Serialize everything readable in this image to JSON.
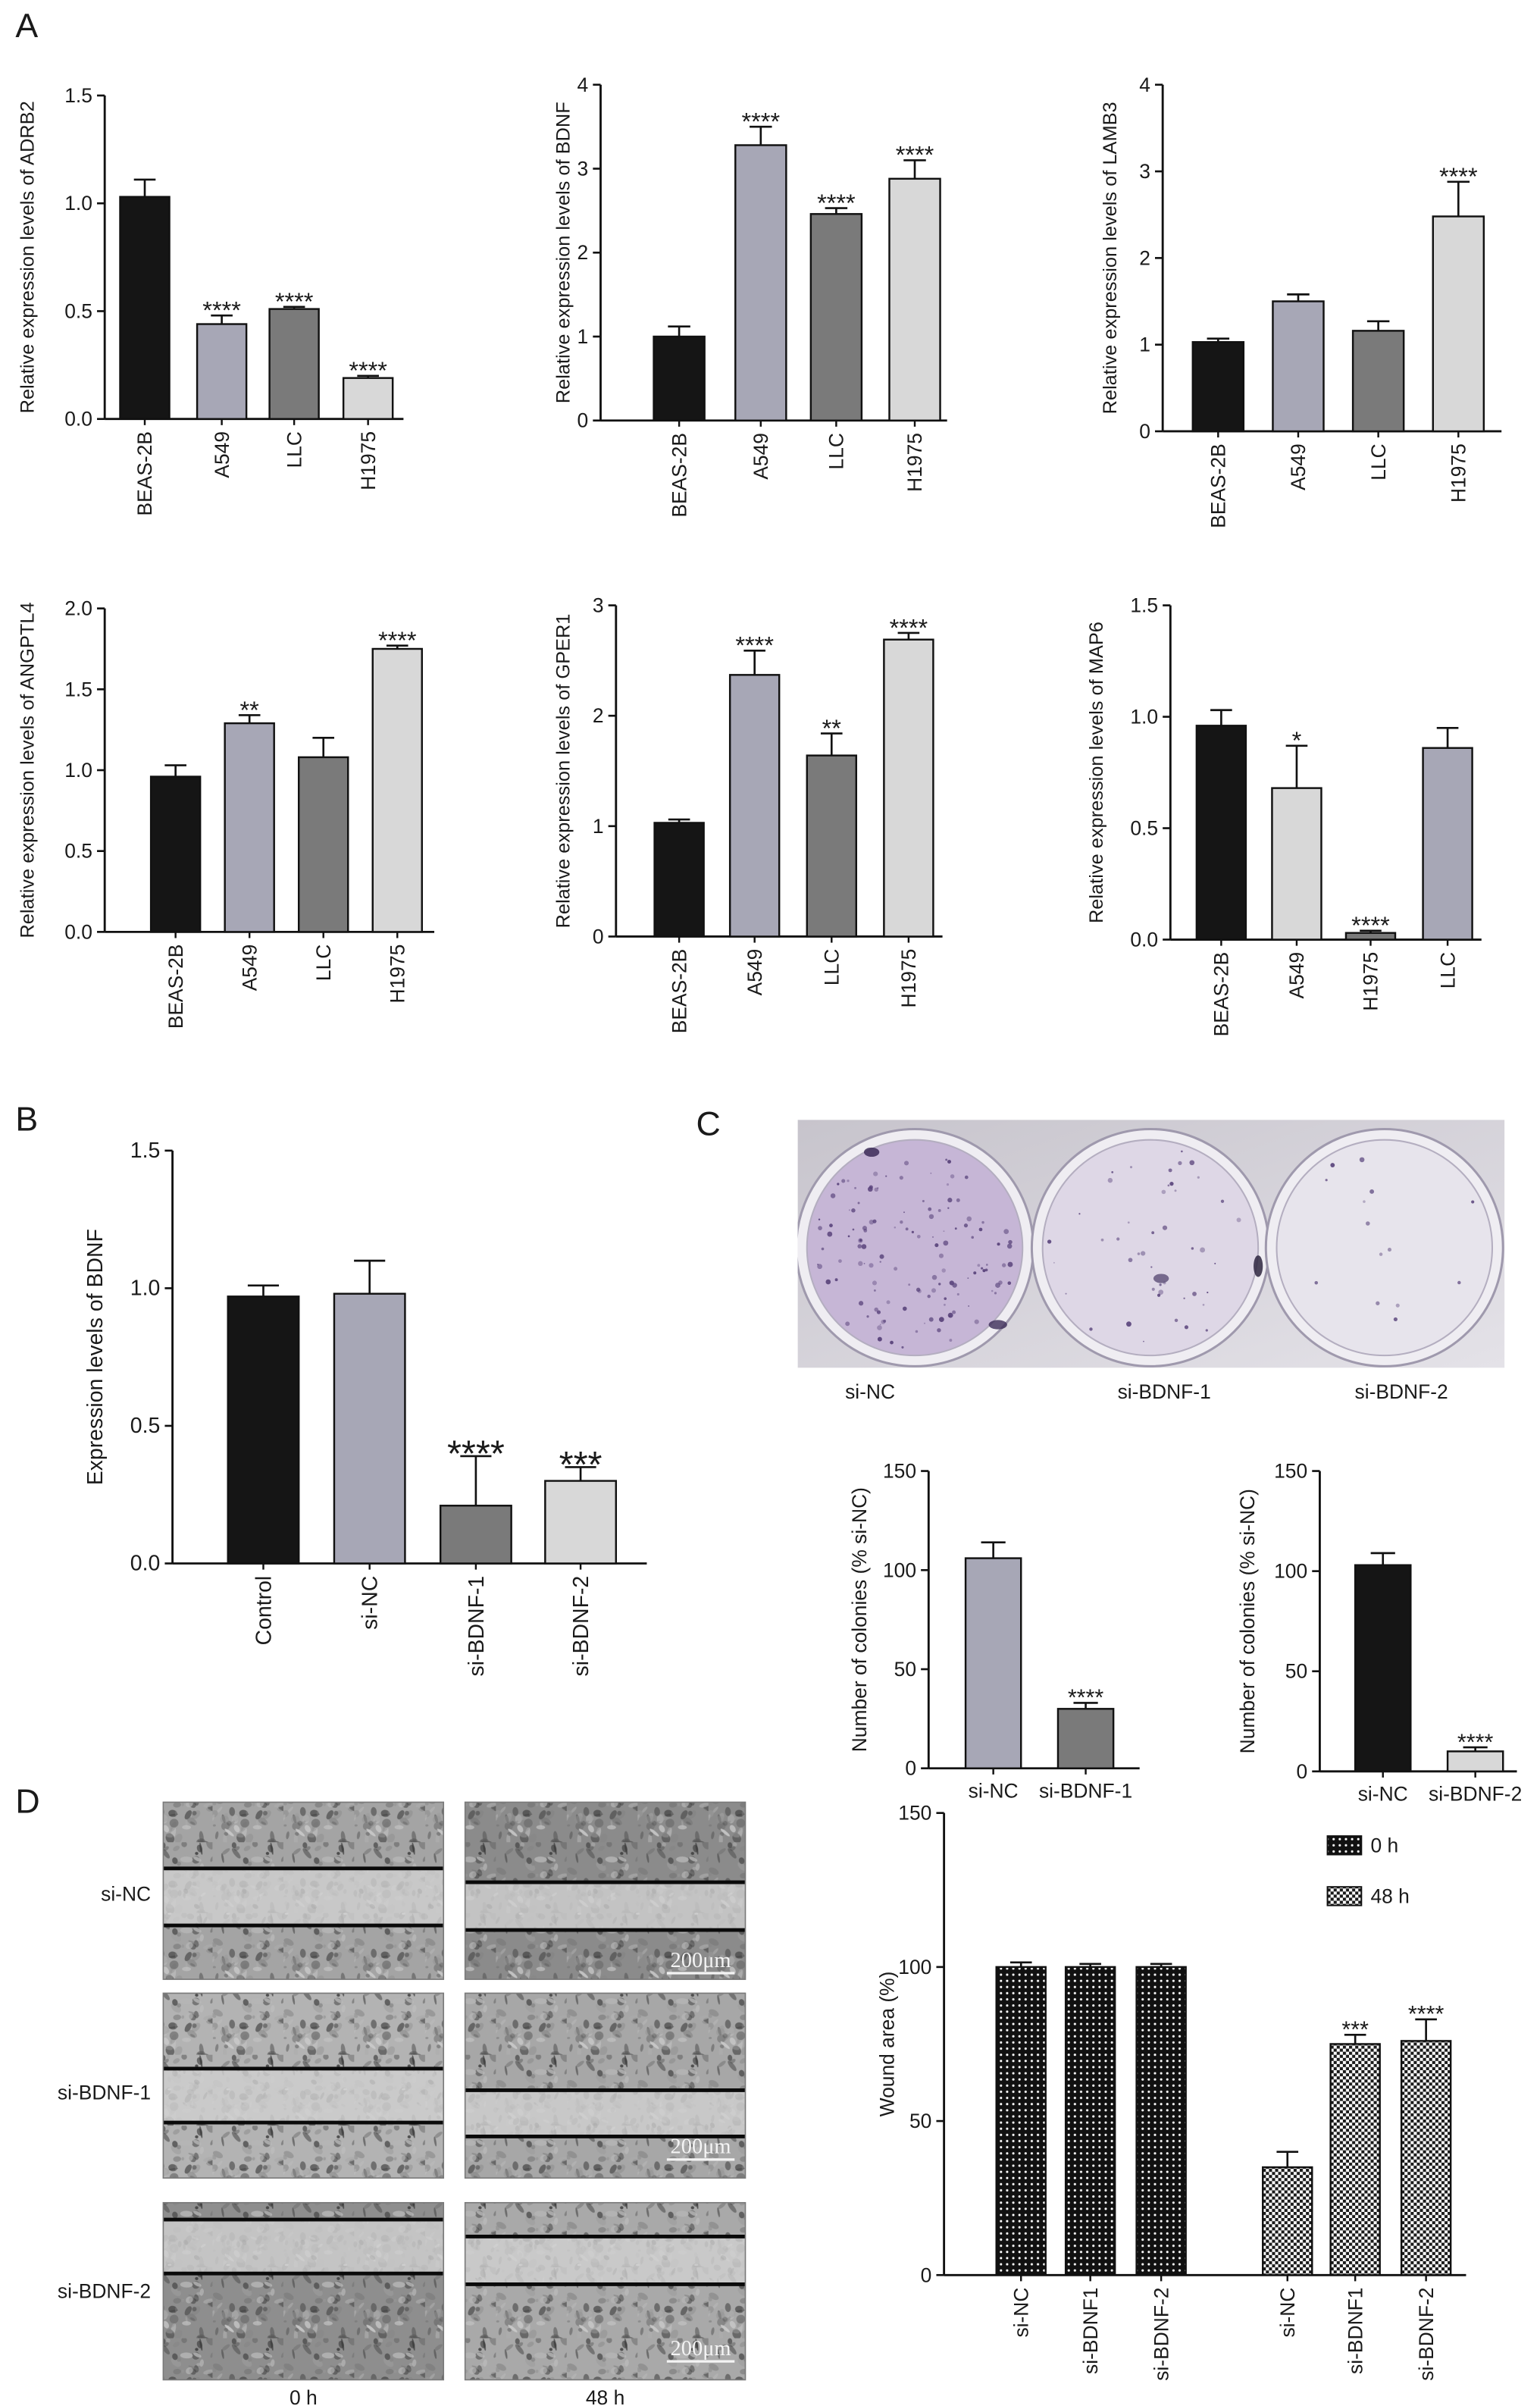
{
  "panel_labels": {
    "a": "A",
    "b": "B",
    "c": "C",
    "d": "D"
  },
  "colony_assay": {
    "labels": [
      "si-NC",
      "si-BDNF-1",
      "si-BDNF-2"
    ]
  },
  "wound_healing": {
    "row_labels": [
      "si-NC",
      "si-BDNF-1",
      "si-BDNF-2"
    ],
    "time_labels": [
      "0 h",
      "48 h"
    ],
    "scale_bar": "200μm"
  },
  "palette": {
    "black": "#151515",
    "lavender_gray": "#a7a7b6",
    "dark_gray": "#7a7a7a",
    "light_gray": "#d8d8d8"
  },
  "chart_data": [
    {
      "type": "bar",
      "ylabel": "Relative expression levels of ADRB2",
      "categories": [
        "BEAS-2B",
        "A549",
        "LLC",
        "H1975"
      ],
      "values": [
        1.03,
        0.44,
        0.51,
        0.19
      ],
      "errors": [
        0.08,
        0.04,
        0.01,
        0.01
      ],
      "significance": [
        "",
        "****",
        "****",
        "****"
      ],
      "colors": [
        "#151515",
        "#a7a7b6",
        "#7a7a7a",
        "#d8d8d8"
      ],
      "ylim": [
        0,
        1.5
      ],
      "yticks": [
        "0.0",
        "0.5",
        "1.0",
        "1.5"
      ],
      "grid": false
    },
    {
      "type": "bar",
      "ylabel": "Relative expression levels of BDNF",
      "categories": [
        "BEAS-2B",
        "A549",
        "LLC",
        "H1975"
      ],
      "values": [
        1.0,
        3.28,
        2.46,
        2.88
      ],
      "errors": [
        0.12,
        0.22,
        0.07,
        0.22
      ],
      "significance": [
        "",
        "****",
        "****",
        "****"
      ],
      "colors": [
        "#151515",
        "#a7a7b6",
        "#7a7a7a",
        "#d8d8d8"
      ],
      "ylim": [
        0,
        4
      ],
      "yticks": [
        "0",
        "1",
        "2",
        "3",
        "4"
      ],
      "grid": false
    },
    {
      "type": "bar",
      "ylabel": "Relative expression levels of LAMB3",
      "categories": [
        "BEAS-2B",
        "A549",
        "LLC",
        "H1975"
      ],
      "values": [
        1.03,
        1.5,
        1.16,
        2.48
      ],
      "errors": [
        0.04,
        0.08,
        0.11,
        0.4
      ],
      "significance": [
        "",
        "",
        "",
        "****"
      ],
      "colors": [
        "#151515",
        "#a7a7b6",
        "#7a7a7a",
        "#d8d8d8"
      ],
      "ylim": [
        0,
        4
      ],
      "yticks": [
        "0",
        "1",
        "2",
        "3",
        "4"
      ],
      "grid": false
    },
    {
      "type": "bar",
      "ylabel": "Relative expression levels of ANGPTL4",
      "categories": [
        "BEAS-2B",
        "A549",
        "LLC",
        "H1975"
      ],
      "values": [
        0.96,
        1.29,
        1.08,
        1.75
      ],
      "errors": [
        0.07,
        0.05,
        0.12,
        0.02
      ],
      "significance": [
        "",
        "**",
        "",
        "****"
      ],
      "colors": [
        "#151515",
        "#a7a7b6",
        "#7a7a7a",
        "#d8d8d8"
      ],
      "ylim": [
        0,
        2.0
      ],
      "yticks": [
        "0.0",
        "0.5",
        "1.0",
        "1.5",
        "2.0"
      ],
      "grid": false
    },
    {
      "type": "bar",
      "ylabel": "Relative expression levels of GPER1",
      "categories": [
        "BEAS-2B",
        "A549",
        "LLC",
        "H1975"
      ],
      "values": [
        1.03,
        2.37,
        1.64,
        2.69
      ],
      "errors": [
        0.03,
        0.22,
        0.2,
        0.06
      ],
      "significance": [
        "",
        "****",
        "**",
        "****"
      ],
      "colors": [
        "#151515",
        "#a7a7b6",
        "#7a7a7a",
        "#d8d8d8"
      ],
      "ylim": [
        0,
        3
      ],
      "yticks": [
        "0",
        "1",
        "2",
        "3"
      ],
      "grid": false
    },
    {
      "type": "bar",
      "ylabel": "Relative expression levels of MAP6",
      "categories": [
        "BEAS-2B",
        "A549",
        "H1975",
        "LLC"
      ],
      "values": [
        0.96,
        0.68,
        0.03,
        0.86
      ],
      "errors": [
        0.07,
        0.19,
        0.01,
        0.09
      ],
      "significance": [
        "",
        "*",
        "****",
        ""
      ],
      "colors": [
        "#151515",
        "#d8d8d8",
        "#7a7a7a",
        "#a7a7b6"
      ],
      "ylim": [
        0,
        1.5
      ],
      "yticks": [
        "0.0",
        "0.5",
        "1.0",
        "1.5"
      ],
      "grid": false
    },
    {
      "type": "bar",
      "ylabel": "Expression levels of BDNF",
      "categories": [
        "Control",
        "si-NC",
        "si-BDNF-1",
        "si-BDNF-2"
      ],
      "values": [
        0.97,
        0.98,
        0.21,
        0.3
      ],
      "errors": [
        0.04,
        0.12,
        0.18,
        0.05
      ],
      "significance": [
        "",
        "",
        "****",
        "***"
      ],
      "colors": [
        "#151515",
        "#a7a7b6",
        "#7a7a7a",
        "#d8d8d8"
      ],
      "ylim": [
        0,
        1.5
      ],
      "yticks": [
        "0.0",
        "0.5",
        "1.0",
        "1.5"
      ],
      "grid": false
    },
    {
      "type": "bar",
      "ylabel": "Number of colonies (% si-NC)",
      "categories": [
        "si-NC",
        "si-BDNF-1"
      ],
      "values": [
        106,
        30
      ],
      "errors": [
        8,
        3
      ],
      "significance": [
        "",
        "****"
      ],
      "colors": [
        "#a7a7b6",
        "#7a7a7a"
      ],
      "ylim": [
        0,
        150
      ],
      "yticks": [
        "0",
        "50",
        "100",
        "150"
      ],
      "grid": false
    },
    {
      "type": "bar",
      "ylabel": "Number of colonies (% si-NC)",
      "categories": [
        "si-NC",
        "si-BDNF-2"
      ],
      "values": [
        103,
        10
      ],
      "errors": [
        6,
        2
      ],
      "significance": [
        "",
        "****"
      ],
      "colors": [
        "#151515",
        "#d8d8d8"
      ],
      "ylim": [
        0,
        150
      ],
      "yticks": [
        "0",
        "50",
        "100",
        "150"
      ],
      "grid": false
    },
    {
      "type": "bar",
      "ylabel": "Wound area (%)",
      "categories": [
        "si-NC",
        "si-BDNF1",
        "si-BDNF-2"
      ],
      "series": [
        {
          "name": "0 h",
          "values": [
            100,
            100,
            100
          ],
          "errors": [
            1.5,
            1,
            1
          ],
          "significance": [
            "",
            "",
            ""
          ],
          "fill": "dotted"
        },
        {
          "name": "48 h",
          "values": [
            35,
            75,
            76
          ],
          "errors": [
            5,
            3,
            7
          ],
          "significance": [
            "",
            "***",
            "****"
          ],
          "fill": "checkered"
        }
      ],
      "ylim": [
        0,
        150
      ],
      "yticks": [
        "0",
        "50",
        "100",
        "150"
      ],
      "legend": "top-right",
      "grid": false
    }
  ]
}
